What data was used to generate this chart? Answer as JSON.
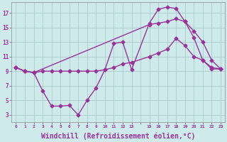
{
  "bg_color": "#ceeaea",
  "grid_color": "#aacccc",
  "line_color": "#993399",
  "marker": "D",
  "markersize": 2.5,
  "linewidth": 1.0,
  "xlabel": "Windchill (Refroidissement éolien,°C)",
  "xlabel_fontsize": 7,
  "yticks": [
    3,
    5,
    7,
    9,
    11,
    13,
    15,
    17
  ],
  "xtick_labels": [
    "0",
    "1",
    "2",
    "3",
    "4",
    "5",
    "6",
    "7",
    "8",
    "9",
    "10",
    "11",
    "12",
    "13",
    "",
    "15",
    "16",
    "17",
    "18",
    "19",
    "20",
    "21",
    "22",
    "23"
  ],
  "xlim": [
    -0.5,
    23.5
  ],
  "ylim": [
    2.0,
    18.5
  ],
  "line1_x": [
    0,
    1,
    2,
    3,
    4,
    5,
    6,
    7,
    8,
    9,
    10,
    11,
    12,
    13,
    15,
    16,
    17,
    18,
    19,
    20,
    21,
    22,
    23
  ],
  "line1_y": [
    9.5,
    9.0,
    8.8,
    9.0,
    9.0,
    9.0,
    9.0,
    9.0,
    9.0,
    9.0,
    9.2,
    9.5,
    10.0,
    10.2,
    11.0,
    11.5,
    12.0,
    13.5,
    12.5,
    11.0,
    10.5,
    9.3,
    9.3
  ],
  "line2_x": [
    0,
    1,
    2,
    3,
    4,
    5,
    6,
    7,
    8,
    9,
    10,
    11,
    12,
    13,
    15,
    16,
    17,
    18,
    19,
    20,
    21,
    22,
    23
  ],
  "line2_y": [
    9.5,
    9.0,
    8.8,
    6.3,
    4.2,
    4.2,
    4.3,
    3.0,
    5.0,
    6.7,
    9.2,
    12.8,
    13.0,
    9.2,
    15.6,
    17.5,
    17.8,
    17.6,
    15.8,
    13.6,
    10.5,
    9.5,
    9.3
  ],
  "line3_x": [
    0,
    1,
    2,
    15,
    16,
    17,
    18,
    19,
    20,
    21,
    22,
    23
  ],
  "line3_y": [
    9.5,
    9.0,
    8.8,
    15.4,
    15.6,
    15.8,
    16.2,
    15.8,
    14.5,
    13.0,
    10.5,
    9.3
  ]
}
